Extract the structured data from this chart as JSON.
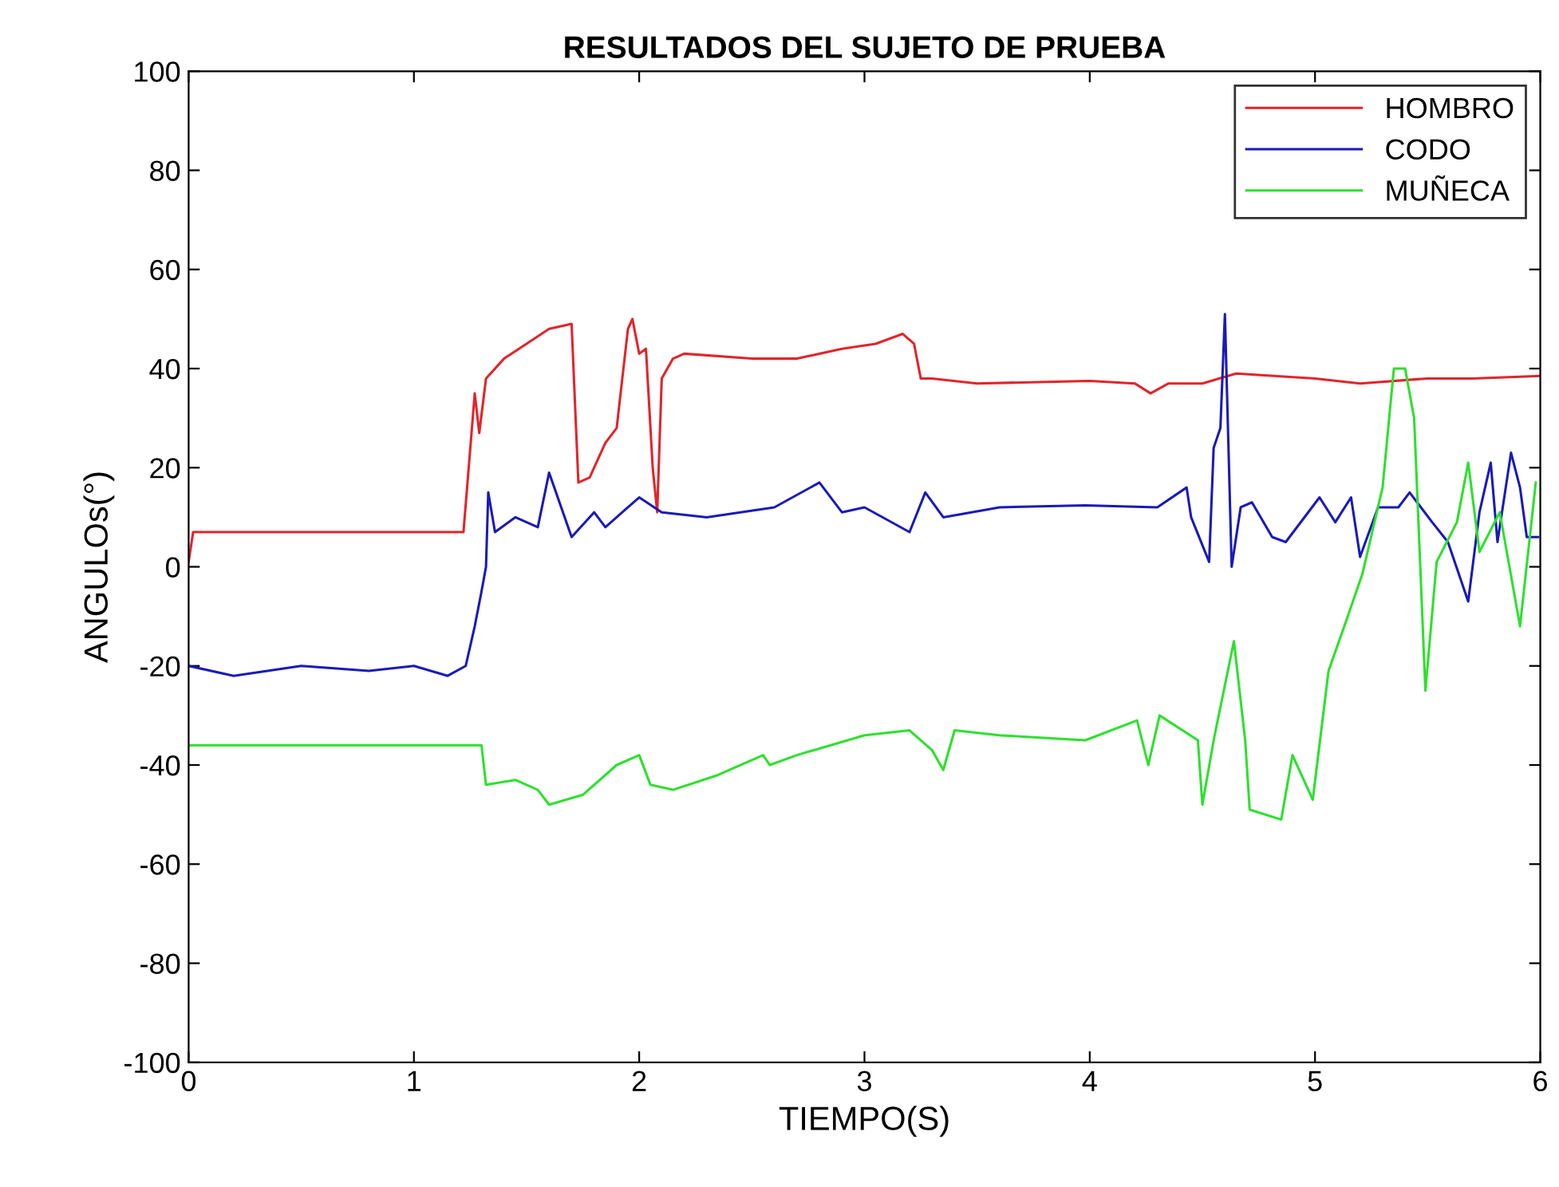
{
  "chart_data": {
    "type": "line",
    "title": "RESULTADOS DEL SUJETO DE PRUEBA",
    "xlabel": "TIEMPO(S)",
    "ylabel": "ANGULOs(°)",
    "xlim": [
      0,
      6
    ],
    "xticks": [
      0,
      1,
      2,
      3,
      4,
      5,
      6
    ],
    "ylim": [
      -100,
      100
    ],
    "yticks": [
      -100,
      -80,
      -60,
      -40,
      -20,
      0,
      20,
      40,
      60,
      80,
      100
    ],
    "grid": false,
    "legend": "top right",
    "marker": "none",
    "line_style": "solid",
    "series": [
      {
        "name": "HOMBRO",
        "color": "#e0252b",
        "x": [
          0,
          0.02,
          1.22,
          1.27,
          1.29,
          1.32,
          1.4,
          1.5,
          1.6,
          1.7,
          1.73,
          1.78,
          1.85,
          1.9,
          1.95,
          1.97,
          2.0,
          2.03,
          2.06,
          2.08,
          2.1,
          2.15,
          2.2,
          2.5,
          2.7,
          2.9,
          3.05,
          3.17,
          3.22,
          3.25,
          3.3,
          3.5,
          4.0,
          4.2,
          4.27,
          4.35,
          4.5,
          4.65,
          5.0,
          5.2,
          5.5,
          5.7,
          6.0
        ],
        "values": [
          1,
          7,
          7,
          35,
          27,
          38,
          42,
          45,
          48,
          49,
          17,
          18,
          25,
          28,
          48,
          50,
          43,
          44,
          20,
          11,
          38,
          42,
          43,
          42,
          42,
          44,
          45,
          47,
          45,
          38,
          38,
          37,
          37.5,
          37,
          35,
          37,
          37,
          39,
          38,
          37,
          38,
          38,
          38.5
        ]
      },
      {
        "name": "CODO",
        "color": "#1a1ab8",
        "x": [
          0,
          0.2,
          0.5,
          0.8,
          1.0,
          1.15,
          1.23,
          1.27,
          1.3,
          1.32,
          1.33,
          1.36,
          1.45,
          1.55,
          1.6,
          1.7,
          1.8,
          1.85,
          1.95,
          2.0,
          2.1,
          2.3,
          2.6,
          2.8,
          2.9,
          3.0,
          3.2,
          3.27,
          3.35,
          3.6,
          3.98,
          4.3,
          4.43,
          4.45,
          4.53,
          4.55,
          4.58,
          4.6,
          4.63,
          4.67,
          4.72,
          4.81,
          4.87,
          5.02,
          5.09,
          5.16,
          5.2,
          5.28,
          5.37,
          5.42,
          5.52,
          5.59,
          5.68,
          5.73,
          5.78,
          5.81,
          5.87,
          5.91,
          5.94,
          5.99
        ],
        "values": [
          -20,
          -22,
          -20,
          -21,
          -20,
          -22,
          -20,
          -12,
          -5,
          0,
          15,
          7,
          10,
          8,
          19,
          6,
          11,
          8,
          12,
          14,
          11,
          10,
          12,
          17,
          11,
          12,
          7,
          15,
          10,
          12,
          12.4,
          12,
          16,
          10,
          1,
          24,
          28,
          51,
          0,
          12,
          13,
          6,
          5,
          14,
          9,
          14,
          2,
          12,
          12,
          15,
          9,
          5,
          -7,
          11,
          21,
          5,
          23,
          16,
          6,
          6
        ]
      },
      {
        "name": "MUÑECA",
        "color": "#2ee02e",
        "x": [
          0,
          1.3,
          1.32,
          1.45,
          1.55,
          1.6,
          1.75,
          1.9,
          2.0,
          2.05,
          2.15,
          2.35,
          2.55,
          2.58,
          2.7,
          3.0,
          3.2,
          3.3,
          3.35,
          3.4,
          3.6,
          3.98,
          4.21,
          4.26,
          4.31,
          4.48,
          4.5,
          4.55,
          4.64,
          4.69,
          4.71,
          4.85,
          4.9,
          4.99,
          5.06,
          5.13,
          5.21,
          5.3,
          5.35,
          5.4,
          5.44,
          5.49,
          5.54,
          5.63,
          5.68,
          5.73,
          5.82,
          5.91,
          5.98
        ],
        "values": [
          -36,
          -36,
          -44,
          -43,
          -45,
          -48,
          -46,
          -40,
          -38,
          -44,
          -45,
          -42,
          -38,
          -40,
          -38,
          -34,
          -33,
          -37,
          -41,
          -33,
          -34,
          -35,
          -31,
          -40,
          -30,
          -35,
          -48,
          -35,
          -15,
          -35,
          -49,
          -51,
          -38,
          -47,
          -21,
          -12,
          -1.5,
          16,
          40,
          40,
          30,
          -25,
          1,
          9,
          21,
          3,
          11,
          -12,
          17
        ]
      }
    ]
  }
}
